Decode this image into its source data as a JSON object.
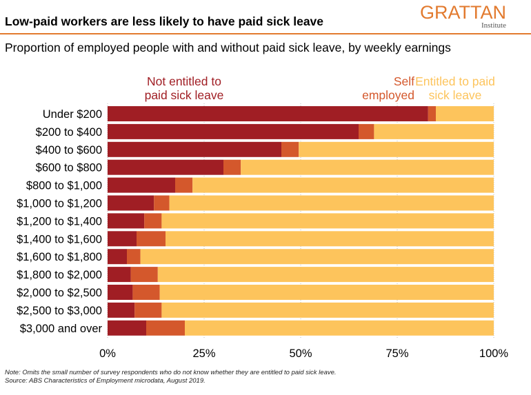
{
  "header": {
    "title": "Low-paid workers are less likely to have paid sick leave",
    "subtitle": "Proportion of employed people with and without paid sick leave, by weekly earnings"
  },
  "logo": {
    "name": "GRATTAN",
    "sub": "Institute"
  },
  "notes": {
    "note": "Note: Omits the small number of survey respondents who do not know whether they are entitled to paid sick leave.",
    "source": "Source: ABS Characteristics of Employment microdata, August 2019."
  },
  "colors": {
    "not_entitled": "#a01e24",
    "self_employed": "#d4582c",
    "entitled": "#fdc45c",
    "grid": "#bbbbbb"
  },
  "chart_data": {
    "type": "bar",
    "orientation": "horizontal",
    "stacked": true,
    "title": "Low-paid workers are less likely to have paid sick leave",
    "xlabel": "",
    "ylabel": "",
    "xlim": [
      0,
      100
    ],
    "x_ticks": [
      "0%",
      "25%",
      "50%",
      "75%",
      "100%"
    ],
    "x_tick_values": [
      0,
      25,
      50,
      75,
      100
    ],
    "categories": [
      "Under $200",
      "$200 to $400",
      "$400 to $600",
      "$600 to $800",
      "$800 to $1,000",
      "$1,000 to $1,200",
      "$1,200 to $1,400",
      "$1,400 to $1,600",
      "$1,600 to $1,800",
      "$1,800 to $2,000",
      "$2,000 to $2,500",
      "$2,500 to $3,000",
      "$3,000 and over"
    ],
    "series": [
      {
        "name": "Not entitled to paid sick leave",
        "label_lines": [
          "Not entitled to",
          "paid sick leave"
        ],
        "values": [
          83,
          65,
          45,
          30,
          17.5,
          12,
          9.5,
          7.5,
          5,
          6,
          6.5,
          7,
          10
        ]
      },
      {
        "name": "Self employed",
        "label_lines": [
          "Self",
          "employed"
        ],
        "values": [
          2,
          4,
          4.5,
          4.5,
          4.5,
          4,
          4.5,
          7.5,
          3.5,
          7,
          7,
          7,
          10
        ]
      },
      {
        "name": "Entitled to paid sick leave",
        "label_lines": [
          "Entitled to paid",
          "sick leave"
        ],
        "values": [
          15,
          31,
          50.5,
          65.5,
          78,
          84,
          86,
          85,
          91.5,
          87,
          86.5,
          86,
          80
        ]
      }
    ]
  }
}
